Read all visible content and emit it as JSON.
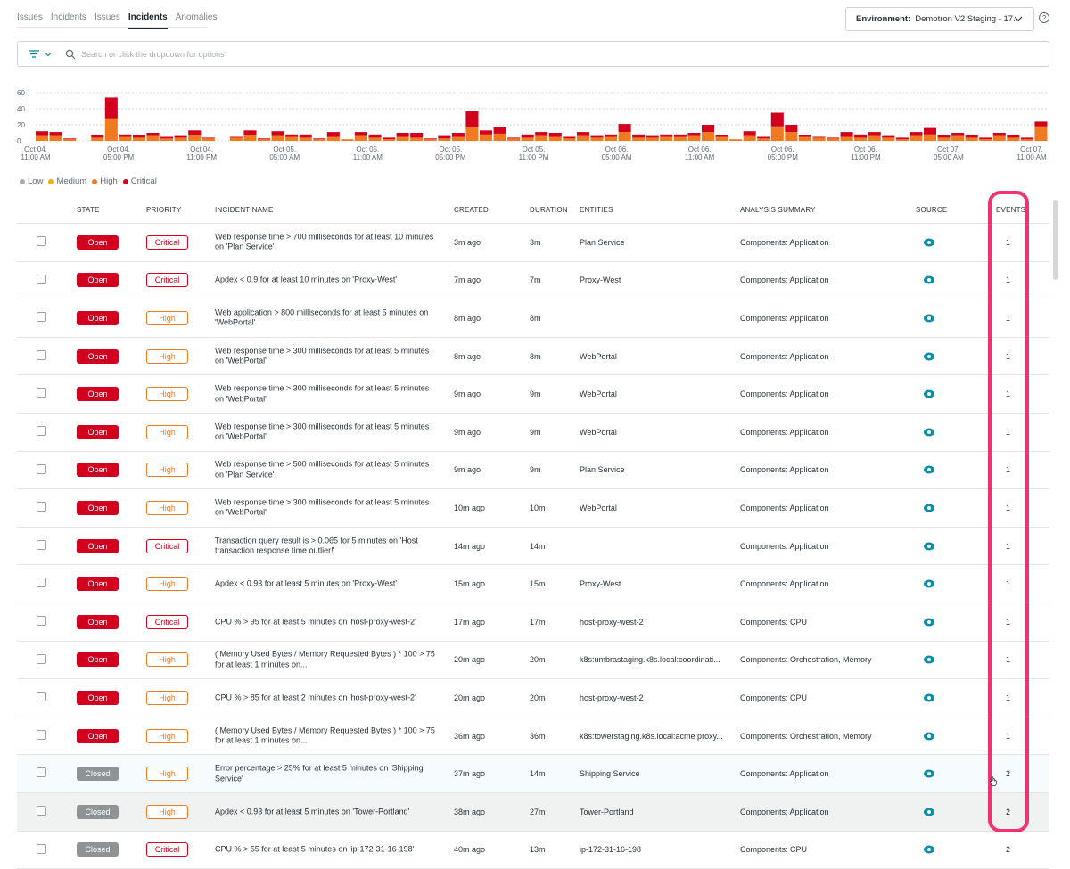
{
  "tabs": [
    {
      "label": "Issues",
      "active": false
    },
    {
      "label": "Incidents",
      "active": false
    },
    {
      "label": "Issues",
      "active": false
    },
    {
      "label": "Incidents",
      "active": true
    },
    {
      "label": "Anomalies",
      "active": false
    }
  ],
  "environment": {
    "label": "Environment:",
    "value": "Demotron V2 Staging - 17..."
  },
  "help_icon": "?",
  "search": {
    "placeholder": "Search or click the dropdown for options"
  },
  "chart_data": {
    "type": "bar",
    "stacked": true,
    "ylim": [
      0,
      60
    ],
    "yticks": [
      "60",
      "40",
      "20",
      "0"
    ],
    "x_tick_labels": [
      [
        "Oct 04,",
        "11:00 AM"
      ],
      [
        "Oct 04,",
        "05:00 PM"
      ],
      [
        "Oct 04,",
        "11:00 PM"
      ],
      [
        "Oct 05,",
        "05:00 AM"
      ],
      [
        "Oct 05,",
        "11:00 AM"
      ],
      [
        "Oct 05,",
        "05:00 PM"
      ],
      [
        "Oct 05,",
        "11:00 PM"
      ],
      [
        "Oct 06,",
        "05:00 AM"
      ],
      [
        "Oct 06,",
        "11:00 AM"
      ],
      [
        "Oct 06,",
        "05:00 PM"
      ],
      [
        "Oct 06,",
        "11:00 PM"
      ],
      [
        "Oct 07,",
        "05:00 AM"
      ],
      [
        "Oct 07,",
        "11:00 AM"
      ]
    ],
    "series": [
      {
        "name": "Low",
        "color": "#a7abad",
        "values": []
      },
      {
        "name": "Medium",
        "color": "#eab300",
        "values": []
      },
      {
        "name": "High",
        "color": "#f07a1f",
        "values": [
          6,
          6,
          2,
          0,
          4,
          28,
          5,
          4,
          6,
          3,
          4,
          7,
          3,
          0,
          4,
          7,
          2,
          6,
          5,
          4,
          2,
          5,
          2,
          6,
          4,
          2,
          5,
          4,
          2,
          3,
          5,
          17,
          8,
          9,
          3,
          4,
          6,
          5,
          3,
          6,
          4,
          5,
          11,
          4,
          4,
          5,
          5,
          6,
          11,
          5,
          2,
          6,
          3,
          18,
          11,
          5,
          4,
          3,
          5,
          4,
          6,
          4,
          2,
          6,
          8,
          4,
          6,
          4,
          2,
          6,
          4,
          2,
          18
        ]
      },
      {
        "name": "Critical",
        "color": "#d2001e",
        "values": [
          6,
          5,
          1,
          0,
          3,
          26,
          3,
          3,
          4,
          2,
          2,
          6,
          1,
          0,
          1,
          6,
          1,
          6,
          3,
          4,
          1,
          6,
          0,
          5,
          4,
          2,
          5,
          6,
          1,
          3,
          5,
          20,
          5,
          8,
          1,
          4,
          5,
          5,
          2,
          5,
          2,
          3,
          10,
          4,
          2,
          3,
          3,
          4,
          9,
          2,
          0,
          6,
          2,
          17,
          9,
          2,
          1,
          1,
          6,
          4,
          5,
          2,
          2,
          5,
          8,
          3,
          4,
          3,
          2,
          4,
          3,
          2,
          6
        ]
      }
    ]
  },
  "legend": [
    {
      "label": "Low",
      "color": "#a7abad"
    },
    {
      "label": "Medium",
      "color": "#eab300"
    },
    {
      "label": "High",
      "color": "#f07a1f"
    },
    {
      "label": "Critical",
      "color": "#d2001e"
    }
  ],
  "table": {
    "columns": [
      "STATE",
      "PRIORITY",
      "INCIDENT NAME",
      "CREATED",
      "DURATION",
      "ENTITIES",
      "ANALYSIS SUMMARY",
      "SOURCE",
      "EVENTS"
    ],
    "rows": [
      {
        "state": "Open",
        "priority": "Critical",
        "name": "Web response time > 700 milliseconds for at least 10 minutes on 'Plan Service'",
        "created": "3m ago",
        "duration": "3m",
        "entities": "Plan Service",
        "analysis": "Components: Application",
        "events": "1"
      },
      {
        "state": "Open",
        "priority": "Critical",
        "name": "Apdex < 0.9 for at least 10 minutes on 'Proxy-West'",
        "created": "7m ago",
        "duration": "7m",
        "entities": "Proxy-West",
        "analysis": "Components: Application",
        "events": "1"
      },
      {
        "state": "Open",
        "priority": "High",
        "name": "Web application > 800 milliseconds for at least 5 minutes on 'WebPortal'",
        "created": "8m ago",
        "duration": "8m",
        "entities": "",
        "analysis": "Components: Application",
        "events": "1"
      },
      {
        "state": "Open",
        "priority": "High",
        "name": "Web response time > 300 milliseconds for at least 5 minutes on 'WebPortal'",
        "created": "8m ago",
        "duration": "8m",
        "entities": "WebPortal",
        "analysis": "Components: Application",
        "events": "1"
      },
      {
        "state": "Open",
        "priority": "High",
        "name": "Web response time > 300 milliseconds for at least 5 minutes on 'WebPortal'",
        "created": "9m ago",
        "duration": "9m",
        "entities": "WebPortal",
        "analysis": "Components: Application",
        "events": "1"
      },
      {
        "state": "Open",
        "priority": "High",
        "name": "Web response time > 300 milliseconds for at least 5 minutes on 'WebPortal'",
        "created": "9m ago",
        "duration": "9m",
        "entities": "WebPortal",
        "analysis": "Components: Application",
        "events": "1"
      },
      {
        "state": "Open",
        "priority": "High",
        "name": "Web response time > 500 milliseconds for at least 5 minutes on 'Plan Service'",
        "created": "9m ago",
        "duration": "9m",
        "entities": "Plan Service",
        "analysis": "Components: Application",
        "events": "1"
      },
      {
        "state": "Open",
        "priority": "High",
        "name": "Web response time > 300 milliseconds for at least 5 minutes on 'WebPortal'",
        "created": "10m ago",
        "duration": "10m",
        "entities": "WebPortal",
        "analysis": "Components: Application",
        "events": "1"
      },
      {
        "state": "Open",
        "priority": "Critical",
        "name": "Transaction query result is > 0.065 for 5 minutes on 'Host transaction response time outlier!'",
        "created": "14m ago",
        "duration": "14m",
        "entities": "",
        "analysis": "Components: Application",
        "events": "1"
      },
      {
        "state": "Open",
        "priority": "High",
        "name": "Apdex < 0.93 for at least 5 minutes on 'Proxy-West'",
        "created": "15m ago",
        "duration": "15m",
        "entities": "Proxy-West",
        "analysis": "Components: Application",
        "events": "1"
      },
      {
        "state": "Open",
        "priority": "Critical",
        "name": "CPU % > 95 for at least 5 minutes on 'host-proxy-west-2'",
        "created": "17m ago",
        "duration": "17m",
        "entities": "host-proxy-west-2",
        "analysis": "Components: CPU",
        "events": "1"
      },
      {
        "state": "Open",
        "priority": "High",
        "name": "( Memory Used Bytes / Memory Requested Bytes ) * 100 > 75 for at least 1 minutes on...",
        "created": "20m ago",
        "duration": "20m",
        "entities": "k8s:umbrastaging.k8s.local:coordinati...",
        "analysis": "Components: Orchestration, Memory",
        "events": "1"
      },
      {
        "state": "Open",
        "priority": "High",
        "name": "CPU % > 85 for at least 2 minutes on 'host-proxy-west-2'",
        "created": "20m ago",
        "duration": "20m",
        "entities": "host-proxy-west-2",
        "analysis": "Components: CPU",
        "events": "1"
      },
      {
        "state": "Open",
        "priority": "High",
        "name": "( Memory Used Bytes / Memory Requested Bytes ) * 100 > 75 for at least 1 minutes on...",
        "created": "36m ago",
        "duration": "36m",
        "entities": "k8s:towerstaging.k8s.local:acme:proxy...",
        "analysis": "Components: Orchestration, Memory",
        "events": "1"
      },
      {
        "state": "Closed",
        "priority": "High",
        "name": "Error percentage > 25% for at least 5 minutes on 'Shipping Service'",
        "created": "37m ago",
        "duration": "14m",
        "entities": "Shipping Service",
        "analysis": "Components: Application",
        "events": "2"
      },
      {
        "state": "Closed",
        "priority": "High",
        "name": "Apdex < 0.93 for at least 5 minutes on 'Tower-Portland'",
        "created": "38m ago",
        "duration": "27m",
        "entities": "Tower-Portland",
        "analysis": "Components: Application",
        "events": "2"
      },
      {
        "state": "Closed",
        "priority": "Critical",
        "name": "CPU % > 55 for at least 5 minutes on 'ip-172-31-16-198'",
        "created": "40m ago",
        "duration": "13m",
        "entities": "ip-172-31-16-198",
        "analysis": "Components: CPU",
        "events": "2"
      }
    ]
  }
}
